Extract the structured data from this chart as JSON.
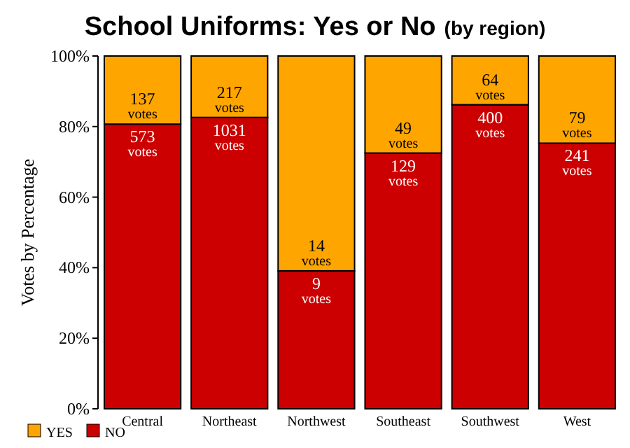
{
  "chart_data": {
    "type": "bar",
    "title": "School Uniforms: Yes or No",
    "subtitle": "(by region)",
    "ylabel": "Votes by Percentage",
    "categories": [
      "Central",
      "Northeast",
      "Northwest",
      "Southeast",
      "Southwest",
      "West"
    ],
    "stacked": true,
    "ylim": [
      0,
      100
    ],
    "yticks": [
      {
        "value": 0,
        "label": "0%"
      },
      {
        "value": 20,
        "label": "20%"
      },
      {
        "value": 40,
        "label": "40%"
      },
      {
        "value": 60,
        "label": "60%"
      },
      {
        "value": 80,
        "label": "80%"
      },
      {
        "value": 100,
        "label": "100%"
      }
    ],
    "legend": "bottom left",
    "grid": false,
    "series": [
      {
        "name": "NO",
        "color": "#cc0000",
        "values": [
          80.7,
          82.6,
          39.1,
          72.5,
          86.2,
          75.3
        ]
      },
      {
        "name": "YES",
        "color": "#ffa500",
        "values": [
          19.3,
          17.4,
          60.9,
          27.5,
          13.8,
          24.7
        ]
      }
    ],
    "annotations": [
      {
        "text": "137 votes",
        "x": "Central",
        "y": 80.7
      },
      {
        "text": "573 votes",
        "x": "Central",
        "y": 80.7
      },
      {
        "text": "217 votes",
        "x": "Northeast",
        "y": 82.6
      },
      {
        "text": "1031 votes",
        "x": "Northeast",
        "y": 82.6
      },
      {
        "text": "14 votes",
        "x": "Northwest",
        "y": 39.1
      },
      {
        "text": "9 votes",
        "x": "Northwest",
        "y": 39.1
      },
      {
        "text": "49 votes",
        "x": "Southeast",
        "y": 72.5
      },
      {
        "text": "129 votes",
        "x": "Southeast",
        "y": 72.5
      },
      {
        "text": "64 votes",
        "x": "Southwest",
        "y": 86.2
      },
      {
        "text": "400 votes",
        "x": "Southwest",
        "y": 86.2
      },
      {
        "text": "79 votes",
        "x": "West",
        "y": 75.3
      },
      {
        "text": "241 votes",
        "x": "West",
        "y": 75.3
      }
    ]
  }
}
